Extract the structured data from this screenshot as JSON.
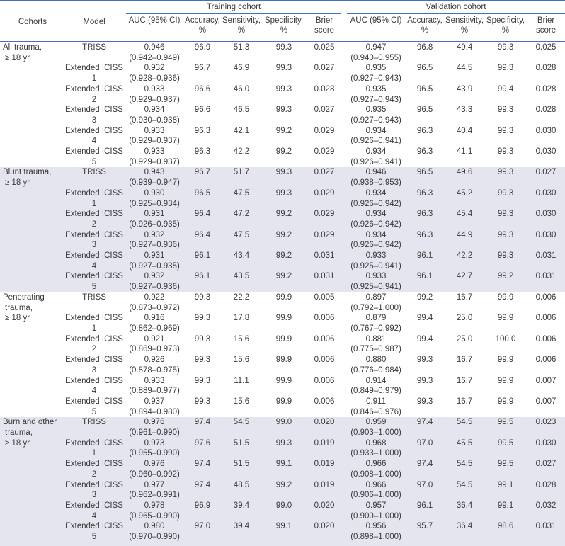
{
  "colors": {
    "rule_blue": "#4472b4",
    "row_shade": "#e5e5ef",
    "text": "#3a3a3a"
  },
  "header": {
    "cohorts": "Cohorts",
    "model": "Model",
    "training": "Training cohort",
    "validation": "Validation cohort",
    "metrics": [
      {
        "name": "auc",
        "lines": [
          "AUC (95% CI)"
        ]
      },
      {
        "name": "accuracy",
        "lines": [
          "Accuracy,",
          "%"
        ]
      },
      {
        "name": "sensitivity",
        "lines": [
          "Sensitivity,",
          "%"
        ]
      },
      {
        "name": "specificity",
        "lines": [
          "Specificity,",
          "%"
        ]
      },
      {
        "name": "brier",
        "lines": [
          "Brier",
          "score"
        ]
      }
    ]
  },
  "sections": [
    {
      "cohort_lines": [
        "All trauma,",
        "≥ 18 yr"
      ],
      "shaded": false,
      "rows": [
        {
          "model": "TRISS",
          "training": {
            "auc": "0.946",
            "ci": "(0.942–0.949)",
            "accuracy": "96.9",
            "sensitivity": "51.3",
            "specificity": "99.3",
            "brier": "0.025"
          },
          "validation": {
            "auc": "0.947",
            "ci": "(0.940–0.955)",
            "accuracy": "96.8",
            "sensitivity": "49.4",
            "specificity": "99.3",
            "brier": "0.025"
          }
        },
        {
          "model": "Extended ICISS 1",
          "training": {
            "auc": "0.932",
            "ci": "(0.928–0.936)",
            "accuracy": "96.7",
            "sensitivity": "46.9",
            "specificity": "99.3",
            "brier": "0.027"
          },
          "validation": {
            "auc": "0.935",
            "ci": "(0.927–0.943)",
            "accuracy": "96.5",
            "sensitivity": "44.5",
            "specificity": "99.3",
            "brier": "0.028"
          }
        },
        {
          "model": "Extended ICISS 2",
          "training": {
            "auc": "0.933",
            "ci": "(0.929–0.937)",
            "accuracy": "96.6",
            "sensitivity": "46.0",
            "specificity": "99.3",
            "brier": "0.028"
          },
          "validation": {
            "auc": "0.935",
            "ci": "(0.927–0.943)",
            "accuracy": "96.5",
            "sensitivity": "43.9",
            "specificity": "99.4",
            "brier": "0.028"
          }
        },
        {
          "model": "Extended ICISS 3",
          "training": {
            "auc": "0.934",
            "ci": "(0.930–0.938)",
            "accuracy": "96.6",
            "sensitivity": "46.5",
            "specificity": "99.3",
            "brier": "0.027"
          },
          "validation": {
            "auc": "0.935",
            "ci": "(0.927–0.943)",
            "accuracy": "96.5",
            "sensitivity": "43.3",
            "specificity": "99.3",
            "brier": "0.028"
          }
        },
        {
          "model": "Extended ICISS 4",
          "training": {
            "auc": "0.933",
            "ci": "(0.929–0.937)",
            "accuracy": "96.3",
            "sensitivity": "42.1",
            "specificity": "99.2",
            "brier": "0.029"
          },
          "validation": {
            "auc": "0.934",
            "ci": "(0.926–0.941)",
            "accuracy": "96.3",
            "sensitivity": "40.4",
            "specificity": "99.3",
            "brier": "0.030"
          }
        },
        {
          "model": "Extended ICISS 5",
          "training": {
            "auc": "0.933",
            "ci": "(0.929–0.937)",
            "accuracy": "96.3",
            "sensitivity": "42.2",
            "specificity": "99.2",
            "brier": "0.029"
          },
          "validation": {
            "auc": "0.934",
            "ci": "(0.926–0.941)",
            "accuracy": "96.3",
            "sensitivity": "41.1",
            "specificity": "99.3",
            "brier": "0.030"
          }
        }
      ]
    },
    {
      "cohort_lines": [
        "Blunt trauma,",
        "≥ 18 yr"
      ],
      "shaded": true,
      "rows": [
        {
          "model": "TRISS",
          "training": {
            "auc": "0.943",
            "ci": "(0.939–0.947)",
            "accuracy": "96.7",
            "sensitivity": "51.7",
            "specificity": "99.3",
            "brier": "0.027"
          },
          "validation": {
            "auc": "0.946",
            "ci": "(0.938–0.953)",
            "accuracy": "96.5",
            "sensitivity": "49.6",
            "specificity": "99.3",
            "brier": "0.027"
          }
        },
        {
          "model": "Extended ICISS 1",
          "training": {
            "auc": "0.930",
            "ci": "(0.925–0.934)",
            "accuracy": "96.5",
            "sensitivity": "47.5",
            "specificity": "99.3",
            "brier": "0.029"
          },
          "validation": {
            "auc": "0.934",
            "ci": "(0.926–0.942)",
            "accuracy": "96.3",
            "sensitivity": "45.2",
            "specificity": "99.3",
            "brier": "0.030"
          }
        },
        {
          "model": "Extended ICISS 2",
          "training": {
            "auc": "0.931",
            "ci": "(0.926–0.935)",
            "accuracy": "96.4",
            "sensitivity": "47.2",
            "specificity": "99.2",
            "brier": "0.029"
          },
          "validation": {
            "auc": "0.934",
            "ci": "(0.926–0.942)",
            "accuracy": "96.3",
            "sensitivity": "45.4",
            "specificity": "99.3",
            "brier": "0.030"
          }
        },
        {
          "model": "Extended ICISS 3",
          "training": {
            "auc": "0.932",
            "ci": "(0.927–0.936)",
            "accuracy": "96.4",
            "sensitivity": "47.5",
            "specificity": "99.2",
            "brier": "0.029"
          },
          "validation": {
            "auc": "0.934",
            "ci": "(0.926–0.942)",
            "accuracy": "96.3",
            "sensitivity": "44.9",
            "specificity": "99.3",
            "brier": "0.030"
          }
        },
        {
          "model": "Extended ICISS 4",
          "training": {
            "auc": "0.931",
            "ci": "(0.927–0.935)",
            "accuracy": "96.1",
            "sensitivity": "43.4",
            "specificity": "99.2",
            "brier": "0.031"
          },
          "validation": {
            "auc": "0.933",
            "ci": "(0.925–0.941)",
            "accuracy": "96.1",
            "sensitivity": "42.2",
            "specificity": "99.3",
            "brier": "0.031"
          }
        },
        {
          "model": "Extended ICISS 5",
          "training": {
            "auc": "0.932",
            "ci": "(0.927–0.936)",
            "accuracy": "96.1",
            "sensitivity": "43.5",
            "specificity": "99.2",
            "brier": "0.031"
          },
          "validation": {
            "auc": "0.933",
            "ci": "(0.925–0.941)",
            "accuracy": "96.1",
            "sensitivity": "42.7",
            "specificity": "99.2",
            "brier": "0.031"
          }
        }
      ]
    },
    {
      "cohort_lines": [
        "Penetrating",
        "trauma,",
        "≥ 18 yr"
      ],
      "shaded": false,
      "rows": [
        {
          "model": "TRISS",
          "training": {
            "auc": "0.922",
            "ci": "(0.873–0.972)",
            "accuracy": "99.3",
            "sensitivity": "22.2",
            "specificity": "99.9",
            "brier": "0.005"
          },
          "validation": {
            "auc": "0.897",
            "ci": "(0.792–1.000)",
            "accuracy": "99.2",
            "sensitivity": "16.7",
            "specificity": "99.9",
            "brier": "0.006"
          }
        },
        {
          "model": "Extended ICISS 1",
          "training": {
            "auc": "0.916",
            "ci": "(0.862–0.969)",
            "accuracy": "99.3",
            "sensitivity": "17.8",
            "specificity": "99.9",
            "brier": "0.006"
          },
          "validation": {
            "auc": "0.879",
            "ci": "(0.767–0.992)",
            "accuracy": "99.4",
            "sensitivity": "25.0",
            "specificity": "99.9",
            "brier": "0.006"
          }
        },
        {
          "model": "Extended ICISS 2",
          "training": {
            "auc": "0.921",
            "ci": "(0.869–0.973)",
            "accuracy": "99.3",
            "sensitivity": "15.6",
            "specificity": "99.9",
            "brier": "0.006"
          },
          "validation": {
            "auc": "0.881",
            "ci": "(0.775–0.987)",
            "accuracy": "99.4",
            "sensitivity": "25.0",
            "specificity": "100.0",
            "brier": "0.006"
          }
        },
        {
          "model": "Extended ICISS 3",
          "training": {
            "auc": "0.926",
            "ci": "(0.878–0.975)",
            "accuracy": "99.3",
            "sensitivity": "15.6",
            "specificity": "99.9",
            "brier": "0.006"
          },
          "validation": {
            "auc": "0.880",
            "ci": "(0.776–0.984)",
            "accuracy": "99.3",
            "sensitivity": "16.7",
            "specificity": "99.9",
            "brier": "0.006"
          }
        },
        {
          "model": "Extended ICISS 4",
          "training": {
            "auc": "0.933",
            "ci": "(0.889–0.977)",
            "accuracy": "99.3",
            "sensitivity": "11.1",
            "specificity": "99.9",
            "brier": "0.006"
          },
          "validation": {
            "auc": "0.914",
            "ci": "(0.849–0.979)",
            "accuracy": "99.3",
            "sensitivity": "16.7",
            "specificity": "99.9",
            "brier": "0.007"
          }
        },
        {
          "model": "Extended ICISS 5",
          "training": {
            "auc": "0.937",
            "ci": "(0.894–0.980)",
            "accuracy": "99.3",
            "sensitivity": "15.6",
            "specificity": "99.9",
            "brier": "0.006"
          },
          "validation": {
            "auc": "0.911",
            "ci": "(0.846–0.976)",
            "accuracy": "99.3",
            "sensitivity": "16.7",
            "specificity": "99.9",
            "brier": "0.007"
          }
        }
      ]
    },
    {
      "cohort_lines": [
        "Burn and other",
        "trauma,",
        "≥ 18 yr"
      ],
      "shaded": true,
      "rows": [
        {
          "model": "TRISS",
          "training": {
            "auc": "0.976",
            "ci": "(0.961–0.990)",
            "accuracy": "97.4",
            "sensitivity": "54.5",
            "specificity": "99.0",
            "brier": "0.020"
          },
          "validation": {
            "auc": "0.959",
            "ci": "(0.903–1.000)",
            "accuracy": "97.4",
            "sensitivity": "54.5",
            "specificity": "99.5",
            "brier": "0.023"
          }
        },
        {
          "model": "Extended ICISS 1",
          "training": {
            "auc": "0.973",
            "ci": "(0.955–0.990)",
            "accuracy": "97.6",
            "sensitivity": "51.5",
            "specificity": "99.3",
            "brier": "0.019"
          },
          "validation": {
            "auc": "0.968",
            "ci": "(0.933–1.000)",
            "accuracy": "97.0",
            "sensitivity": "45.5",
            "specificity": "99.5",
            "brier": "0.030"
          }
        },
        {
          "model": "Extended ICISS 2",
          "training": {
            "auc": "0.976",
            "ci": "(0.960–0.992)",
            "accuracy": "97.4",
            "sensitivity": "51.5",
            "specificity": "99.1",
            "brier": "0.019"
          },
          "validation": {
            "auc": "0.966",
            "ci": "(0.908–1.000)",
            "accuracy": "97.4",
            "sensitivity": "54.5",
            "specificity": "99.5",
            "brier": "0.027"
          }
        },
        {
          "model": "Extended ICISS 3",
          "training": {
            "auc": "0.977",
            "ci": "(0.962–0.991)",
            "accuracy": "97.4",
            "sensitivity": "48.5",
            "specificity": "99.2",
            "brier": "0.019"
          },
          "validation": {
            "auc": "0.966",
            "ci": "(0.906–1.000)",
            "accuracy": "97.0",
            "sensitivity": "54.5",
            "specificity": "99.1",
            "brier": "0.028"
          }
        },
        {
          "model": "Extended ICISS 4",
          "training": {
            "auc": "0.978",
            "ci": "(0.965–0.990)",
            "accuracy": "96.9",
            "sensitivity": "39.4",
            "specificity": "99.0",
            "brier": "0.020"
          },
          "validation": {
            "auc": "0.957",
            "ci": "(0.900–1.000)",
            "accuracy": "96.1",
            "sensitivity": "36.4",
            "specificity": "99.1",
            "brier": "0.032"
          }
        },
        {
          "model": "Extended ICISS 5",
          "training": {
            "auc": "0.980",
            "ci": "(0.970–0.990)",
            "accuracy": "97.0",
            "sensitivity": "39.4",
            "specificity": "99.1",
            "brier": "0.020"
          },
          "validation": {
            "auc": "0.956",
            "ci": "(0.898–1.000)",
            "accuracy": "95.7",
            "sensitivity": "36.4",
            "specificity": "98.6",
            "brier": "0.031"
          }
        }
      ]
    }
  ]
}
